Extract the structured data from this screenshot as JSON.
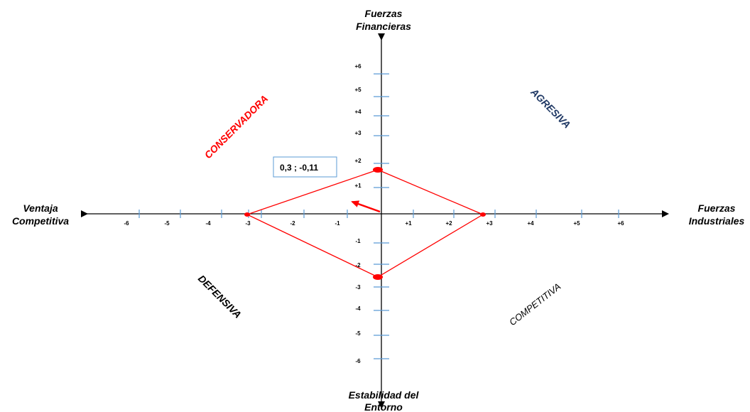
{
  "axes": {
    "top": [
      "Fuerzas",
      "Financieras"
    ],
    "bottom": [
      "Estabilidad del",
      "Entorno"
    ],
    "left": [
      "Ventaja",
      "Competitiva"
    ],
    "right": [
      "Fuerzas",
      "Industriales"
    ]
  },
  "quadrants": {
    "top_left": "CONSERVADORA",
    "top_right": "AGRESIVA",
    "bottom_left": "DEFENSIVA",
    "bottom_right": "COMPETITIVA"
  },
  "ticks": {
    "x_left": [
      "-6",
      "-5",
      "-4",
      "-3",
      "-2",
      "-1"
    ],
    "x_right": [
      "+1",
      "+2",
      "+3",
      "+4",
      "+5",
      "+6"
    ],
    "y_up": [
      "+1",
      "+2",
      "+3",
      "+4",
      "+5",
      "+6"
    ],
    "y_down": [
      "-1",
      "-2",
      "-3",
      "-4",
      "-5",
      "-6"
    ]
  },
  "result": {
    "label": "0,3 ; -0,11"
  },
  "colors": {
    "axis": "#000000",
    "tick": "#5b9bd5",
    "polygon": "#ff0000",
    "conservadora": "#ff0000",
    "agresiva": "#1f3864",
    "defensiva": "#000000",
    "competitiva": "#000000",
    "label_border": "#5b9bd5"
  }
}
